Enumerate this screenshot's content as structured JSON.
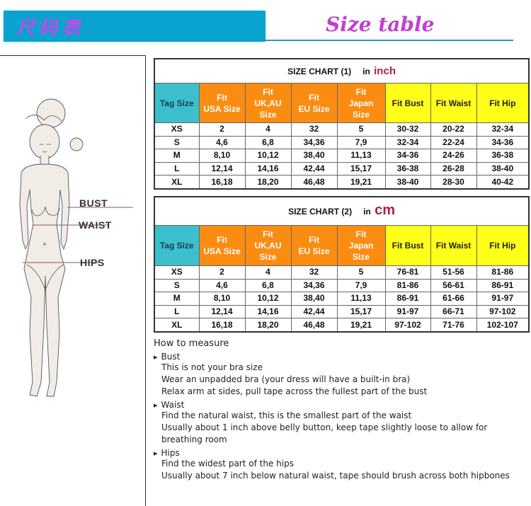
{
  "header": {
    "brand_text": "尺码表",
    "title": "Size table",
    "brand_color": "#0aa2cf",
    "title_color": "#c33fd0"
  },
  "figure": {
    "labels": {
      "bust": "BUST",
      "waist": "WAIST",
      "hips": "HIPS"
    }
  },
  "tables": [
    {
      "title": "SIZE CHART (1)",
      "in": "in",
      "unit": "inch",
      "headers": [
        "Tag Size",
        "Fit\nUSA Size",
        "Fit\nUK,AU\nSize",
        "Fit\nEU Size",
        "Fit\nJapan\nSize",
        "Fit Bust",
        "Fit Waist",
        "Fit Hip"
      ],
      "rows": [
        [
          "XS",
          "2",
          "4",
          "32",
          "5",
          "30-32",
          "20-22",
          "32-34"
        ],
        [
          "S",
          "4,6",
          "6,8",
          "34,36",
          "7,9",
          "32-34",
          "22-24",
          "34-36"
        ],
        [
          "M",
          "8,10",
          "10,12",
          "38,40",
          "11,13",
          "34-36",
          "24-26",
          "36-38"
        ],
        [
          "L",
          "12,14",
          "14,16",
          "42,44",
          "15,17",
          "36-38",
          "26-28",
          "38-40"
        ],
        [
          "XL",
          "16,18",
          "18,20",
          "46,48",
          "19,21",
          "38-40",
          "28-30",
          "40-42"
        ]
      ]
    },
    {
      "title": "SIZE CHART (2)",
      "in": "in",
      "unit": "cm",
      "headers": [
        "Tag Size",
        "Fit\nUSA Size",
        "Fit\nUK,AU\nSize",
        "Fit\nEU Size",
        "Fit\nJapan\nSize",
        "Fit Bust",
        "Fit Waist",
        "Fit Hip"
      ],
      "rows": [
        [
          "XS",
          "2",
          "4",
          "32",
          "5",
          "76-81",
          "51-56",
          "81-86"
        ],
        [
          "S",
          "4,6",
          "6,8",
          "34,36",
          "7,9",
          "81-86",
          "56-61",
          "86-91"
        ],
        [
          "M",
          "8,10",
          "10,12",
          "38,40",
          "11,13",
          "86-91",
          "61-66",
          "91-97"
        ],
        [
          "L",
          "12,14",
          "14,16",
          "42,44",
          "15,17",
          "91-97",
          "66-71",
          "97-102"
        ],
        [
          "XL",
          "16,18",
          "18,20",
          "46,48",
          "19,21",
          "97-102",
          "71-76",
          "102-107"
        ]
      ]
    }
  ],
  "how_to": {
    "heading": "How to measure",
    "sections": [
      {
        "name": "Bust",
        "lines": [
          "This is not your bra size",
          "Wear an unpadded bra (your dress will have a built-in bra)",
          "Relax arm at sides, pull tape across the fullest part of the bust"
        ]
      },
      {
        "name": "Waist",
        "lines": [
          "Find the natural waist, this is the smallest part of the waist",
          "Usually about 1 inch above belly button, keep tape slightly loose to allow for breathing room"
        ]
      },
      {
        "name": "Hips",
        "lines": [
          "Find the widest part of the hips",
          "Usually about 7 inch below natural waist, tape should brush across both hipbones"
        ]
      }
    ]
  }
}
